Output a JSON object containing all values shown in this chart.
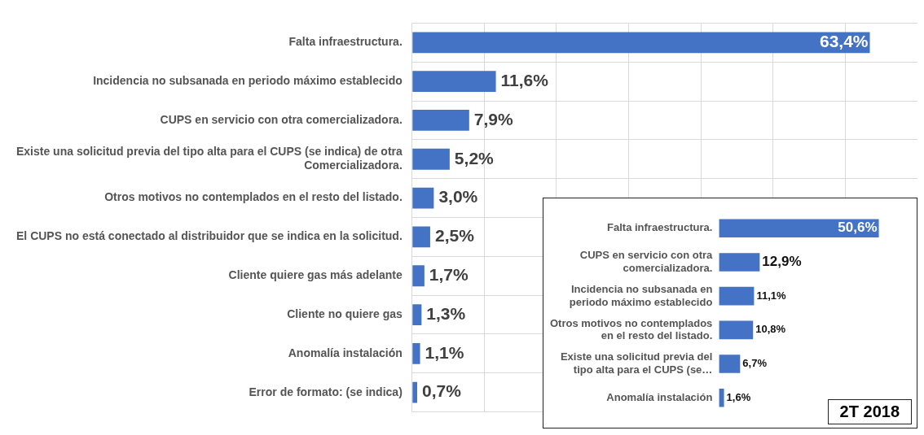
{
  "chart_data": [
    {
      "type": "bar",
      "orientation": "horizontal",
      "categories": [
        "Falta infraestructura.",
        "Incidencia no subsanada en periodo máximo establecido",
        "CUPS en servicio con otra comercializadora.",
        "Existe una solicitud previa del tipo alta para el CUPS (se indica) de otra Comercializadora.",
        "Otros motivos no contemplados en el resto del listado.",
        "El CUPS no está conectado al distribuidor que se indica en la solicitud.",
        "Cliente quiere gas más adelante",
        "Cliente no quiere gas",
        "Anomalía instalación",
        "Error de formato: (se indica)"
      ],
      "values": [
        63.4,
        11.6,
        7.9,
        5.2,
        3.0,
        2.5,
        1.7,
        1.3,
        1.1,
        0.7
      ],
      "value_labels": [
        "63,4%",
        "11,6%",
        "7,9%",
        "5,2%",
        "3,0%",
        "2,5%",
        "1,7%",
        "1,3%",
        "1,1%",
        "0,7%"
      ],
      "color": "#4472c4",
      "grid": true,
      "legend": false
    },
    {
      "type": "bar",
      "orientation": "horizontal",
      "title": "2T 2018",
      "categories": [
        "Falta infraestructura.",
        "CUPS en servicio con otra comercializadora.",
        "Incidencia no subsanada en periodo máximo establecido",
        "Otros motivos no contemplados en el resto del listado.",
        "Existe una solicitud previa del tipo alta para el CUPS (se…",
        "Anomalía instalación"
      ],
      "values": [
        50.6,
        12.9,
        11.1,
        10.8,
        6.7,
        1.6
      ],
      "value_labels": [
        "50,6%",
        "12,9%",
        "11,1%",
        "10,8%",
        "6,7%",
        "1,6%"
      ],
      "color": "#4472c4",
      "grid": false,
      "legend": false
    }
  ]
}
